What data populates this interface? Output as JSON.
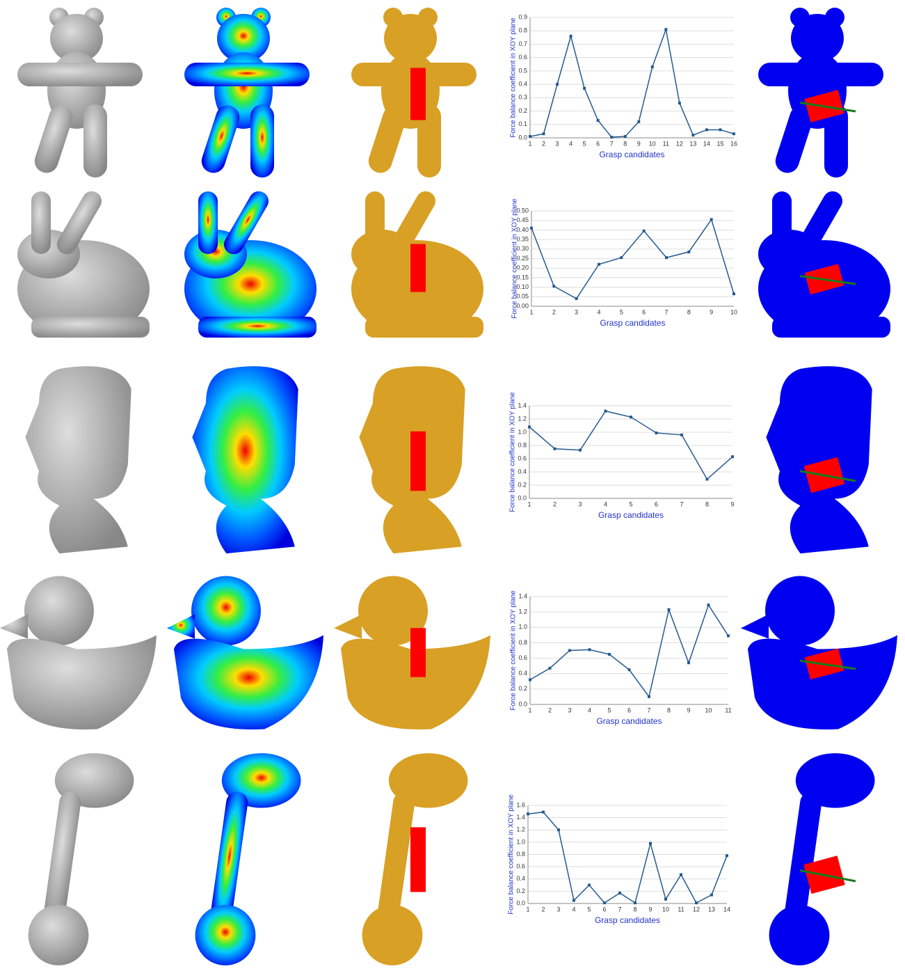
{
  "chart_data": [
    {
      "type": "line",
      "x": [
        1,
        2,
        3,
        4,
        5,
        6,
        7,
        8,
        9,
        10,
        11,
        12,
        13,
        14,
        15,
        16
      ],
      "values": [
        0.01,
        0.03,
        0.4,
        0.76,
        0.37,
        0.13,
        0.005,
        0.01,
        0.12,
        0.53,
        0.81,
        0.26,
        0.02,
        0.06,
        0.06,
        0.03
      ],
      "color": "#24598f",
      "xlim": [
        1,
        16
      ],
      "ylim": [
        0,
        0.9
      ],
      "yticks": [
        {
          "value": 0,
          "label": "0.0"
        },
        0.1,
        0.2,
        0.3,
        0.4,
        0.5,
        0.6,
        0.7,
        0.8,
        0.9
      ],
      "grid": true,
      "xlabel": "Grasp candidates",
      "ylabel": "Force balance coefficient in XOY plane"
    },
    {
      "type": "line",
      "x": [
        1,
        2,
        3,
        4,
        5,
        6,
        7,
        8,
        9,
        10
      ],
      "values": [
        0.41,
        0.105,
        0.04,
        0.22,
        0.255,
        0.395,
        0.255,
        0.285,
        0.455,
        0.065
      ],
      "color": "#24598f",
      "xlim": [
        1,
        10
      ],
      "ylim": [
        0,
        0.5
      ],
      "yticks": [
        {
          "value": 0,
          "label": "0.00"
        },
        0.05,
        {
          "value": 0.1,
          "label": "0.10"
        },
        0.15,
        {
          "value": 0.2,
          "label": "0.20"
        },
        0.25,
        {
          "value": 0.3,
          "label": "0.30"
        },
        0.35,
        {
          "value": 0.4,
          "label": "0.40"
        },
        0.45,
        {
          "value": 0.5,
          "label": "0.50"
        }
      ],
      "grid": true,
      "xlabel": "Grasp candidates",
      "ylabel": "Force balance coefficient in XOY plane"
    },
    {
      "type": "line",
      "x": [
        1,
        2,
        3,
        4,
        5,
        6,
        7,
        8,
        9
      ],
      "values": [
        1.08,
        0.75,
        0.73,
        1.32,
        1.23,
        0.99,
        0.96,
        0.29,
        0.63
      ],
      "color": "#24598f",
      "xlim": [
        1,
        9
      ],
      "ylim": [
        0,
        1.4
      ],
      "yticks": [
        {
          "value": 0,
          "label": "0.0"
        },
        0.2,
        0.4,
        0.6,
        0.8,
        {
          "value": 1,
          "label": "1.0"
        },
        1.2,
        1.4
      ],
      "grid": true,
      "xlabel": "Grasp candidates",
      "ylabel": "Force balance coefficient in XOY plane"
    },
    {
      "type": "line",
      "x": [
        1,
        2,
        3,
        4,
        5,
        6,
        7,
        8,
        9,
        10,
        11
      ],
      "values": [
        0.32,
        0.47,
        0.7,
        0.71,
        0.65,
        0.45,
        0.1,
        1.23,
        0.54,
        1.29,
        0.89
      ],
      "color": "#24598f",
      "xlim": [
        1,
        11
      ],
      "ylim": [
        0,
        1.4
      ],
      "yticks": [
        {
          "value": 0,
          "label": "0.0"
        },
        0.2,
        0.4,
        0.6,
        0.8,
        {
          "value": 1,
          "label": "1.0"
        },
        1.2,
        1.4
      ],
      "grid": true,
      "xlabel": "Grasp candidates",
      "ylabel": "Force balance coefficient in XOY plane"
    },
    {
      "type": "line",
      "x": [
        1,
        2,
        3,
        4,
        5,
        6,
        7,
        8,
        9,
        10,
        11,
        12,
        13,
        14
      ],
      "values": [
        1.46,
        1.49,
        1.2,
        0.05,
        0.3,
        0.01,
        0.17,
        0.01,
        0.98,
        0.07,
        0.47,
        0.01,
        0.14,
        0.78
      ],
      "color": "#24598f",
      "xlim": [
        1,
        14
      ],
      "ylim": [
        0,
        1.6
      ],
      "yticks": [
        {
          "value": 0,
          "label": "0.0"
        },
        0.2,
        0.4,
        0.6,
        0.8,
        {
          "value": 1,
          "label": "1.0"
        },
        1.2,
        1.4,
        1.6
      ],
      "grid": true,
      "xlabel": "Grasp candidates",
      "ylabel": "Force balance coefficient in XOY plane"
    }
  ]
}
